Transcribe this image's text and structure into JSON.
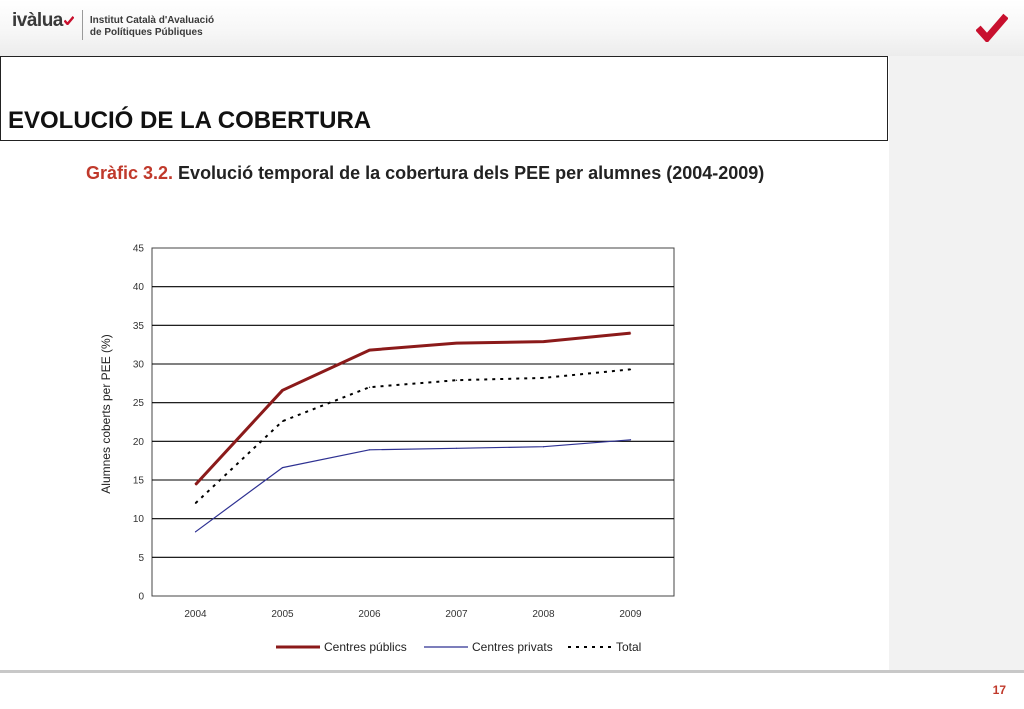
{
  "header": {
    "brand_name": "ivàlua",
    "brand_tagline_1": "Institut Català d'Avaluació",
    "brand_tagline_2": "de Polítiques Públiques",
    "icon": "checkmark-logo-icon",
    "accent_color": "#c8102e"
  },
  "slide": {
    "title": "EVOLUCIÓ DE LA COBERTURA",
    "caption_label": "Gràfic 3.2.",
    "caption_text": " Evolució temporal de la cobertura dels PEE per alumnes (2004-2009)",
    "page_number": "17"
  },
  "chart_data": {
    "type": "line",
    "x": [
      "2004",
      "2005",
      "2006",
      "2007",
      "2008",
      "2009"
    ],
    "xlabel": "",
    "ylabel": "Alumnes coberts per PEE (%)",
    "ylim": [
      0,
      45
    ],
    "yticks": [
      "0",
      "5",
      "10",
      "15",
      "20",
      "25",
      "30",
      "35",
      "40",
      "45"
    ],
    "grid": "horizontal",
    "legend_position": "bottom",
    "series": [
      {
        "name": "Centres públics",
        "values": [
          14.4,
          26.6,
          31.8,
          32.7,
          32.9,
          34.0
        ],
        "color": "#8b1a1a",
        "style": "solid"
      },
      {
        "name": "Centres privats",
        "values": [
          8.3,
          16.6,
          18.9,
          19.1,
          19.3,
          20.2
        ],
        "color": "#2e3192",
        "style": "solid"
      },
      {
        "name": "Total",
        "values": [
          12.0,
          22.6,
          27.0,
          27.9,
          28.2,
          29.3
        ],
        "color": "#000000",
        "style": "dashed"
      }
    ]
  }
}
